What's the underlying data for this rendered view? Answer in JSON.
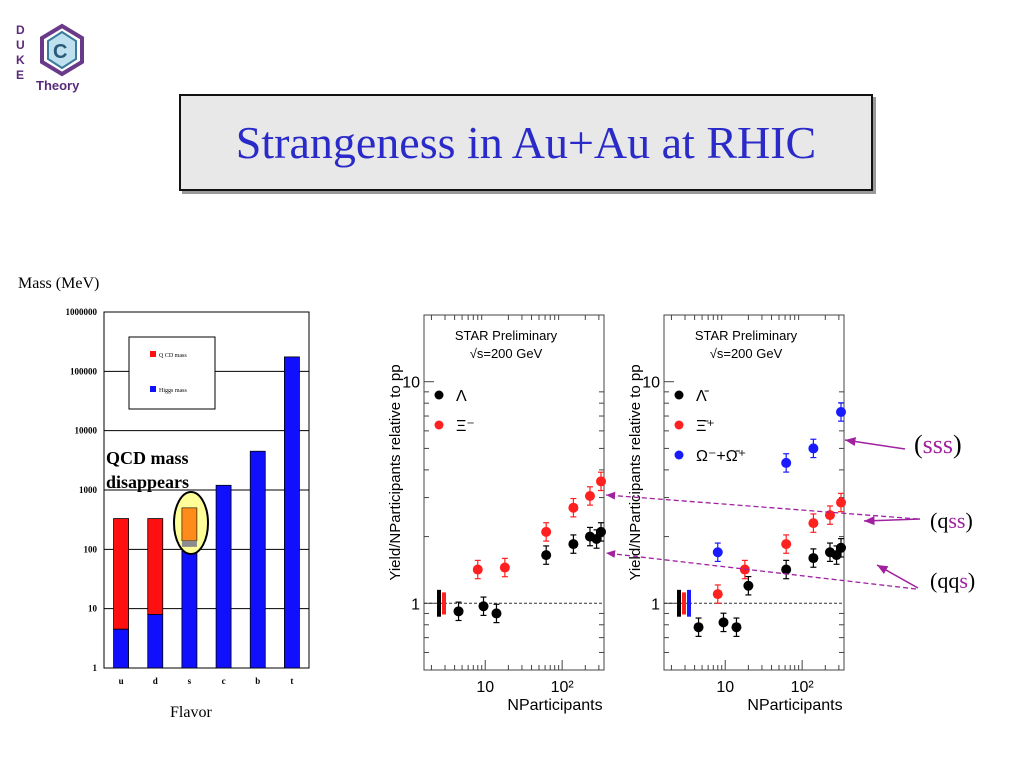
{
  "logo": {
    "letters": [
      "D",
      "U",
      "K",
      "E"
    ],
    "word": "Theory"
  },
  "title": "Strangeness in Au+Au at RHIC",
  "chart_data": [
    {
      "type": "bar",
      "y_label_top": "Mass (MeV)",
      "xlabel": "Flavor",
      "scale": "log",
      "ylim": [
        1,
        1000000
      ],
      "yticks": [
        "1",
        "10",
        "100",
        "1000",
        "10000",
        "100000",
        "1000000"
      ],
      "categories": [
        "u",
        "d",
        "s",
        "c",
        "b",
        "t"
      ],
      "series": [
        {
          "name": "Q CD mass",
          "color": "#ff1010",
          "values": [
            330,
            330,
            500,
            0,
            0,
            0
          ]
        },
        {
          "name": "Higgs mass",
          "color": "#1010ff",
          "values": [
            4.5,
            8,
            110,
            1200,
            4500,
            175000
          ]
        }
      ],
      "annotation": "QCD mass disappears",
      "legend": "top-left"
    },
    {
      "type": "scatter",
      "header": "STAR Preliminary",
      "subheader": "√s=200 GeV",
      "ylabel": "Yield/NParticipants relative to pp",
      "xlabel": "NParticipants",
      "scale": "log-log",
      "xlim": [
        1.6,
        350
      ],
      "ylim": [
        0.5,
        20
      ],
      "xticks": [
        "10",
        "10²"
      ],
      "yticks": [
        "1",
        "10"
      ],
      "series": [
        {
          "name": "Λ",
          "color": "#000000",
          "points": [
            [
              4.5,
              0.92
            ],
            [
              9.5,
              0.97
            ],
            [
              14,
              0.9
            ],
            [
              62,
              1.65
            ],
            [
              140,
              1.85
            ],
            [
              230,
              2.0
            ],
            [
              280,
              1.95
            ],
            [
              320,
              2.1
            ]
          ]
        },
        {
          "name": "Ξ⁻",
          "color": "#ff2020",
          "points": [
            [
              8,
              1.42
            ],
            [
              18,
              1.45
            ],
            [
              62,
              2.1
            ],
            [
              140,
              2.7
            ],
            [
              230,
              3.05
            ],
            [
              320,
              3.55
            ]
          ]
        }
      ]
    },
    {
      "type": "scatter",
      "header": "STAR Preliminary",
      "subheader": "√s=200 GeV",
      "ylabel": "Yield/NParticipants relative to pp",
      "xlabel": "NParticipants",
      "scale": "log-log",
      "xlim": [
        1.6,
        350
      ],
      "ylim": [
        0.5,
        20
      ],
      "xticks": [
        "10",
        "10²"
      ],
      "yticks": [
        "1",
        "10"
      ],
      "series": [
        {
          "name": "Λ̄",
          "color": "#000000",
          "points": [
            [
              4.5,
              0.78
            ],
            [
              9.5,
              0.82
            ],
            [
              14,
              0.78
            ],
            [
              20,
              1.2
            ],
            [
              62,
              1.42
            ],
            [
              140,
              1.6
            ],
            [
              230,
              1.7
            ],
            [
              280,
              1.65
            ],
            [
              320,
              1.78
            ]
          ]
        },
        {
          "name": "Ξ̄⁺",
          "color": "#ff2020",
          "points": [
            [
              8,
              1.1
            ],
            [
              18,
              1.42
            ],
            [
              62,
              1.85
            ],
            [
              140,
              2.3
            ],
            [
              230,
              2.5
            ],
            [
              320,
              2.85
            ]
          ]
        },
        {
          "name": "Ω⁻+Ω̄⁺",
          "color": "#1a1aff",
          "points": [
            [
              8,
              1.7
            ],
            [
              62,
              4.3
            ],
            [
              140,
              5.0
            ],
            [
              320,
              7.3
            ]
          ]
        }
      ]
    }
  ],
  "annotations": {
    "sss": "sss",
    "qss_q": "q",
    "qss_ss": "ss",
    "qqs_qq": "qq",
    "qqs_s": "s"
  }
}
